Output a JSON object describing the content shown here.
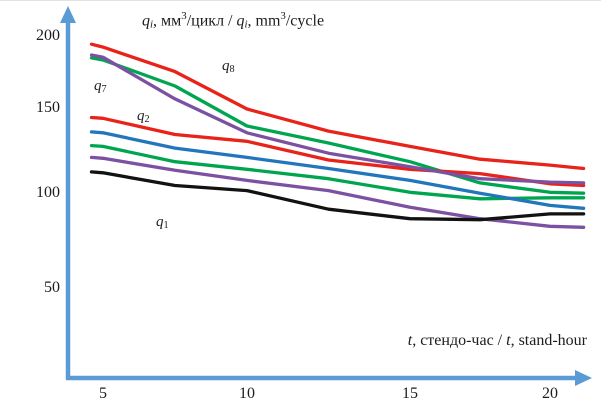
{
  "chart_data": {
    "type": "line",
    "title": "qᵢ, мм³/цикл / qᵢ, mm³/cycle",
    "title_parts": [
      {
        "text": "q",
        "i": true
      },
      {
        "text": "i",
        "sub": true,
        "i": true
      },
      {
        "text": ", мм"
      },
      {
        "text": "3",
        "sup": true
      },
      {
        "text": "/цикл / "
      },
      {
        "text": "q",
        "i": true
      },
      {
        "text": "i",
        "sub": true,
        "i": true
      },
      {
        "text": ", mm"
      },
      {
        "text": "3",
        "sup": true
      },
      {
        "text": "/cycle"
      }
    ],
    "xlabel": "t, стендо-час / t, stand-hour",
    "xlabel_parts": [
      {
        "text": "t",
        "i": true
      },
      {
        "text": ", стендо-час / "
      },
      {
        "text": "t",
        "i": true
      },
      {
        "text": ", stand-hour"
      }
    ],
    "ylabel": "",
    "x_ticks": [
      5,
      10,
      15,
      20
    ],
    "y_ticks": [
      200,
      150,
      100,
      50
    ],
    "xlim": [
      4.5,
      21.3
    ],
    "ylim": [
      0,
      210
    ],
    "grid": false,
    "legend": "none (labels placed next to curves)",
    "axis_color": "#5b9bd5",
    "x": [
      4.6,
      5,
      7.5,
      10,
      12.5,
      15,
      17.5,
      20,
      21.2
    ],
    "series": [
      {
        "name": "q8",
        "label_base": "q",
        "label_sub": "8",
        "color": "#e8231a",
        "values": [
          195,
          193,
          176,
          150,
          137,
          128,
          120.5,
          117,
          115
        ]
      },
      {
        "name": "green-upper",
        "color": "#00a550",
        "values": [
          185.5,
          184,
          166,
          140,
          130,
          119,
          106.5,
          101,
          100.5
        ]
      },
      {
        "name": "q2",
        "label_base": "q",
        "label_sub": "2",
        "color": "#e8231a",
        "values": [
          145,
          144.5,
          135,
          131,
          120,
          114.5,
          112,
          106,
          105
        ]
      },
      {
        "name": "green-lower",
        "color": "#00a550",
        "values": [
          128.5,
          128,
          119,
          114.5,
          109,
          101,
          97.5,
          98,
          98
        ]
      },
      {
        "name": "blue",
        "color": "#2276bc",
        "values": [
          136.5,
          136,
          127,
          121.5,
          115,
          108,
          100.5,
          94,
          92.5
        ]
      },
      {
        "name": "q7",
        "label_base": "q",
        "label_sub": "7",
        "color": "#7c51a1",
        "values": [
          187.5,
          186,
          157,
          136,
          124,
          116,
          109,
          107,
          106.5
        ]
      },
      {
        "name": "purple-lower",
        "color": "#7c51a1",
        "values": [
          121.5,
          121,
          114,
          108,
          102,
          93,
          87,
          83,
          82.5
        ]
      },
      {
        "name": "q1",
        "label_base": "q",
        "label_sub": "1",
        "color": "#121212",
        "values": [
          113,
          112.5,
          105,
          102,
          92,
          87,
          86.5,
          89.5,
          89.5
        ]
      }
    ]
  }
}
